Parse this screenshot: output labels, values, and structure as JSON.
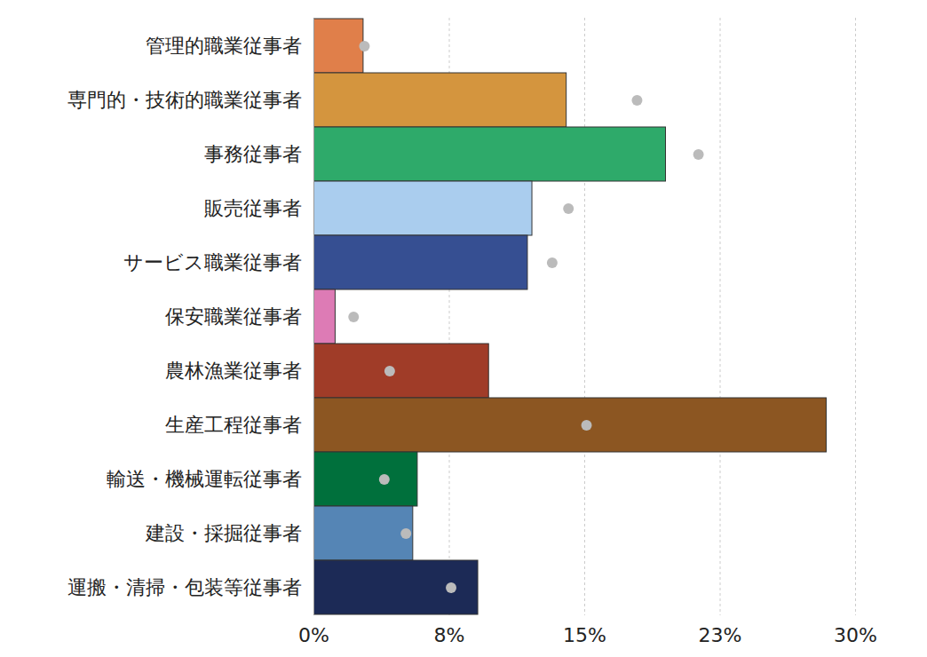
{
  "chart_data": {
    "type": "bar",
    "orientation": "horizontal",
    "grid": true,
    "categories": [
      "管理的職業従事者",
      "専門的・技術的職業従事者",
      "事務従事者",
      "販売従事者",
      "サービス職業従事者",
      "保安職業従事者",
      "農林漁業従事者",
      "生産工程従事者",
      "輸送・機械運転従事者",
      "建設・採掘従事者",
      "運搬・清掃・包装等従事者"
    ],
    "series": [
      {
        "type": "bar",
        "colors": [
          "#e07f4a",
          "#d4953e",
          "#2eaa6a",
          "#aacdee",
          "#364f92",
          "#dd7bb5",
          "#a03c28",
          "#8c5622",
          "#00703c",
          "#5585b5",
          "#1c2a56"
        ],
        "values": [
          2.75,
          14.0,
          19.5,
          12.1,
          11.85,
          1.2,
          9.7,
          28.4,
          5.75,
          5.5,
          9.1
        ]
      },
      {
        "type": "scatter",
        "marker": "circle",
        "color": "#bbbbbb",
        "values": [
          2.8,
          17.9,
          21.3,
          14.1,
          13.2,
          2.2,
          4.2,
          15.1,
          3.9,
          5.1,
          7.6
        ]
      }
    ],
    "xlim": [
      0,
      30
    ],
    "xticks": [
      {
        "value": 0,
        "label": "0%"
      },
      {
        "value": 7.5,
        "label": "8%"
      },
      {
        "value": 15,
        "label": "15%"
      },
      {
        "value": 22.5,
        "label": "23%"
      },
      {
        "value": 30,
        "label": "30%"
      }
    ]
  }
}
